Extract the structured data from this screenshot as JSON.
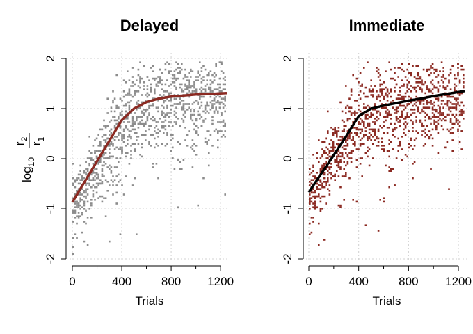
{
  "chart_data": [
    {
      "type": "scatter",
      "title": "Delayed",
      "xlabel": "Trials",
      "ylabel": {
        "prefix": "log",
        "base": "10",
        "numerator": "r",
        "numerator_sub": "2",
        "denominator": "r",
        "denominator_sub": "1"
      },
      "xlim": [
        0,
        1250
      ],
      "ylim": [
        -2,
        2
      ],
      "xticks": [
        0,
        400,
        800,
        1200
      ],
      "yticks": [
        -2,
        -1,
        0,
        1,
        2
      ],
      "grid": true,
      "point_color": "#8c8c8c",
      "curve_color": "#8b2a22",
      "fit_curve": {
        "x": [
          0,
          100,
          200,
          300,
          400,
          500,
          600,
          700,
          800,
          900,
          1000,
          1100,
          1250
        ],
        "y": [
          -0.87,
          -0.46,
          -0.05,
          0.36,
          0.77,
          1.0,
          1.13,
          1.2,
          1.24,
          1.26,
          1.28,
          1.29,
          1.31
        ]
      }
    },
    {
      "type": "scatter",
      "title": "Immediate",
      "xlabel": "Trials",
      "ylabel": {
        "prefix": "",
        "base": "",
        "numerator": "",
        "numerator_sub": "",
        "denominator": "",
        "denominator_sub": ""
      },
      "xlim": [
        0,
        1250
      ],
      "ylim": [
        -2,
        2
      ],
      "xticks": [
        0,
        400,
        800,
        1200
      ],
      "yticks": [
        -2,
        -1,
        0,
        1,
        2
      ],
      "grid": true,
      "point_color": "#8b2a22",
      "curve_color": "#000000",
      "fit_curve": {
        "x": [
          0,
          100,
          200,
          300,
          400,
          500,
          600,
          700,
          800,
          900,
          1000,
          1100,
          1250
        ],
        "y": [
          -0.67,
          -0.3,
          0.07,
          0.45,
          0.85,
          1.0,
          1.06,
          1.11,
          1.16,
          1.2,
          1.25,
          1.29,
          1.35
        ]
      }
    }
  ]
}
